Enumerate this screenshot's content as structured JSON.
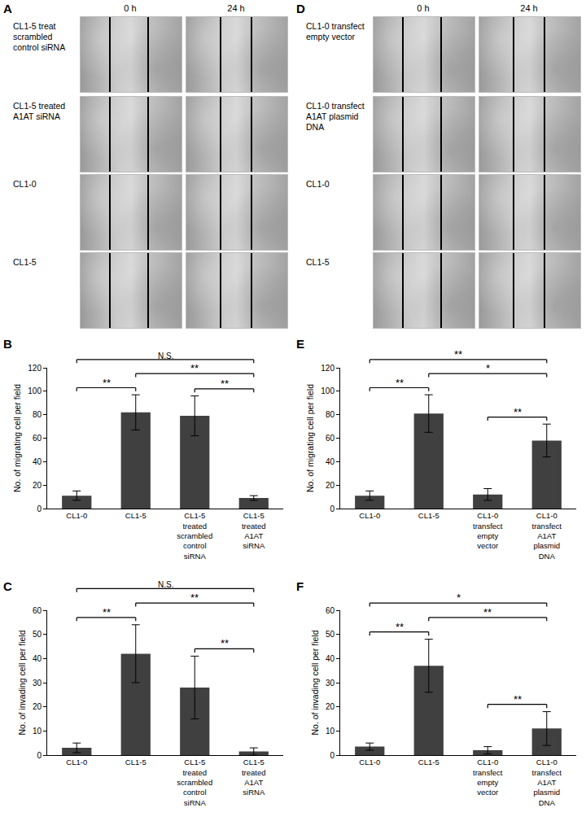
{
  "image_panels": [
    {
      "panel": "A",
      "columns": [
        "0 h",
        "24 h"
      ],
      "rows": [
        "CL1-5 treat scrambled control siRNA",
        "CL1-5 treated A1AT siRNA",
        "CL1-0",
        "CL1-5"
      ]
    },
    {
      "panel": "D",
      "columns": [
        "0 h",
        "24 h"
      ],
      "rows": [
        "CL1-0 transfect empty vector",
        "CL1-0 transfect A1AT plasmid DNA",
        "CL1-0",
        "CL1-5"
      ]
    }
  ],
  "chart_data": [
    {
      "panel": "B",
      "type": "bar",
      "color": "#404040",
      "categories": [
        "CL1-0",
        "CL1-5",
        "CL1-5 treated scrambled control siRNA",
        "CL1-5 treated A1AT siRNA"
      ],
      "values": [
        11,
        82,
        79,
        9
      ],
      "errors": [
        4,
        15,
        17,
        2
      ],
      "ylabel": "No. of migrating cell per field",
      "ylim": [
        0,
        120
      ],
      "yticks": [
        0,
        20,
        40,
        60,
        80,
        100,
        120
      ],
      "grid": false,
      "significance": [
        {
          "from": "CL1-0",
          "to": "CL1-5",
          "label": "**"
        },
        {
          "from": "CL1-5 treated scrambled control siRNA",
          "to": "CL1-5 treated A1AT siRNA",
          "label": "**"
        },
        {
          "from": "CL1-5",
          "to": "CL1-5 treated A1AT siRNA",
          "label": "**"
        },
        {
          "from": "CL1-0",
          "to": "CL1-5 treated A1AT siRNA",
          "label": "N.S."
        }
      ]
    },
    {
      "panel": "C",
      "type": "bar",
      "color": "#404040",
      "categories": [
        "CL1-0",
        "CL1-5",
        "CL1-5 treated scrambled control siRNA",
        "CL1-5 treated A1AT siRNA"
      ],
      "values": [
        3,
        42,
        28,
        1.5
      ],
      "errors": [
        2,
        12,
        13,
        1.5
      ],
      "ylabel": "No. of invading cell per field",
      "ylim": [
        0,
        60
      ],
      "yticks": [
        0,
        10,
        20,
        30,
        40,
        50,
        60
      ],
      "grid": false,
      "significance": [
        {
          "from": "CL1-0",
          "to": "CL1-5",
          "label": "**"
        },
        {
          "from": "CL1-5 treated scrambled control siRNA",
          "to": "CL1-5 treated A1AT siRNA",
          "label": "**"
        },
        {
          "from": "CL1-5",
          "to": "CL1-5 treated A1AT siRNA",
          "label": "**"
        },
        {
          "from": "CL1-0",
          "to": "CL1-5 treated A1AT siRNA",
          "label": "N.S."
        }
      ]
    },
    {
      "panel": "E",
      "type": "bar",
      "color": "#404040",
      "categories": [
        "CL1-0",
        "CL1-5",
        "CL1-0 transfect empty vector",
        "CL1-0 transfect A1AT plasmid DNA"
      ],
      "values": [
        11,
        81,
        12,
        58
      ],
      "errors": [
        4,
        16,
        5,
        14
      ],
      "ylabel": "No. of migrating cell per field",
      "ylim": [
        0,
        120
      ],
      "yticks": [
        0,
        20,
        40,
        60,
        80,
        100,
        120
      ],
      "grid": false,
      "significance": [
        {
          "from": "CL1-0",
          "to": "CL1-5",
          "label": "**"
        },
        {
          "from": "CL1-0 transfect empty vector",
          "to": "CL1-0 transfect A1AT plasmid DNA",
          "label": "**"
        },
        {
          "from": "CL1-5",
          "to": "CL1-0 transfect A1AT plasmid DNA",
          "label": "*"
        },
        {
          "from": "CL1-0",
          "to": "CL1-0 transfect A1AT plasmid DNA",
          "label": "**"
        }
      ]
    },
    {
      "panel": "F",
      "type": "bar",
      "color": "#404040",
      "categories": [
        "CL1-0",
        "CL1-5",
        "CL1-0 transfect empty vector",
        "CL1-0 transfect A1AT plasmid DNA"
      ],
      "values": [
        3.5,
        37,
        2,
        11
      ],
      "errors": [
        1.5,
        11,
        1.5,
        7
      ],
      "ylabel": "No. of invading cell per field",
      "ylim": [
        0,
        60
      ],
      "yticks": [
        0,
        10,
        20,
        30,
        40,
        50,
        60
      ],
      "grid": false,
      "significance": [
        {
          "from": "CL1-0",
          "to": "CL1-5",
          "label": "**"
        },
        {
          "from": "CL1-0 transfect empty vector",
          "to": "CL1-0 transfect A1AT plasmid DNA",
          "label": "**"
        },
        {
          "from": "CL1-5",
          "to": "CL1-0 transfect A1AT plasmid DNA",
          "label": "**"
        },
        {
          "from": "CL1-0",
          "to": "CL1-0 transfect A1AT plasmid DNA",
          "label": "*"
        }
      ]
    }
  ]
}
